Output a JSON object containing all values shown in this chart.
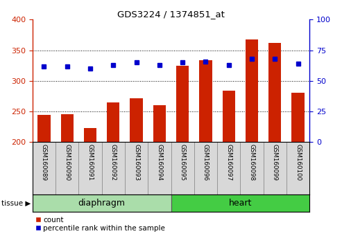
{
  "title": "GDS3224 / 1374851_at",
  "samples": [
    "GSM160089",
    "GSM160090",
    "GSM160091",
    "GSM160092",
    "GSM160093",
    "GSM160094",
    "GSM160095",
    "GSM160096",
    "GSM160097",
    "GSM160098",
    "GSM160099",
    "GSM160100"
  ],
  "count_values": [
    244,
    245,
    223,
    265,
    272,
    260,
    325,
    334,
    284,
    368,
    362,
    281
  ],
  "percentile_values": [
    62,
    62,
    60,
    63,
    65,
    63,
    65,
    66,
    63,
    68,
    68,
    64
  ],
  "tissue_groups": [
    {
      "label": "diaphragm",
      "start": 0,
      "end": 6,
      "color": "#aaddaa"
    },
    {
      "label": "heart",
      "start": 6,
      "end": 12,
      "color": "#44cc44"
    }
  ],
  "left_ylim": [
    200,
    400
  ],
  "left_yticks": [
    200,
    250,
    300,
    350,
    400
  ],
  "right_ylim": [
    0,
    100
  ],
  "right_yticks": [
    0,
    25,
    50,
    75,
    100
  ],
  "bar_color": "#CC2200",
  "dot_color": "#0000CC",
  "bar_width": 0.55,
  "background_color": "#ffffff",
  "grid_color": "#000000",
  "left_tick_color": "#CC2200",
  "right_tick_color": "#0000CC",
  "cell_bg": "#d8d8d8",
  "cell_border": "#888888"
}
